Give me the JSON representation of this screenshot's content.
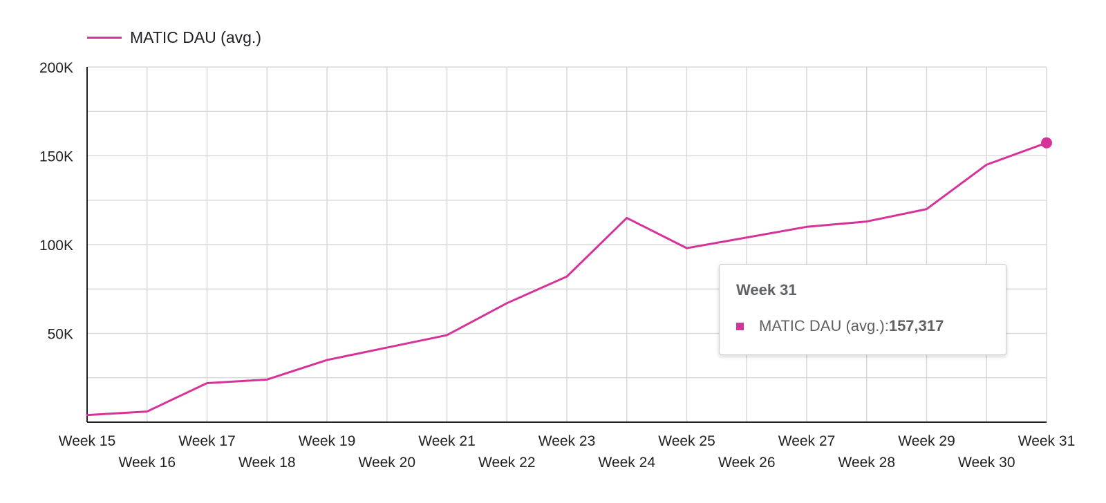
{
  "chart_data": {
    "type": "line",
    "categories": [
      "Week 15",
      "Week 16",
      "Week 17",
      "Week 18",
      "Week 19",
      "Week 20",
      "Week 21",
      "Week 22",
      "Week 23",
      "Week 24",
      "Week 25",
      "Week 26",
      "Week 27",
      "Week 28",
      "Week 29",
      "Week 30",
      "Week 31"
    ],
    "series": [
      {
        "name": "MATIC DAU (avg.)",
        "color": "#d6339a",
        "values": [
          4000,
          6000,
          22000,
          24000,
          35000,
          42000,
          49000,
          67000,
          82000,
          115000,
          98000,
          104000,
          110000,
          113000,
          120000,
          145000,
          157317
        ]
      }
    ],
    "y_ticks": [
      50000,
      100000,
      150000,
      200000
    ],
    "y_tick_labels": [
      "50K",
      "100K",
      "150K",
      "200K"
    ],
    "ylim": [
      0,
      200000
    ],
    "grid": true,
    "legend_position": "top-left",
    "highlight_index": 16
  },
  "legend": {
    "label": "MATIC DAU (avg.)"
  },
  "tooltip": {
    "title": "Week 31",
    "series_label": "MATIC DAU (avg.): ",
    "value": "157,317"
  },
  "colors": {
    "line": "#d6339a",
    "grid": "#d9d9d9",
    "axis": "#202124",
    "text": "#202124"
  }
}
